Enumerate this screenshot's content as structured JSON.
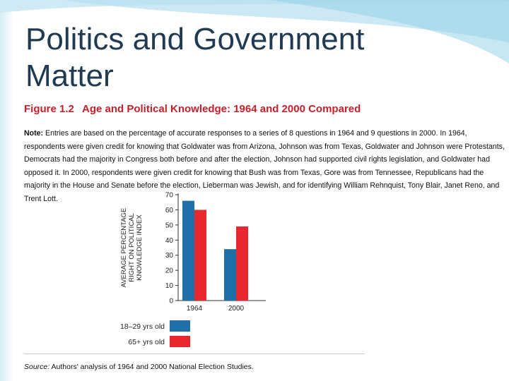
{
  "slide": {
    "title": "Politics and Government Matter"
  },
  "figure": {
    "label": "Figure 1.2",
    "title": "Age and Political Knowledge: 1964 and 2000 Compared",
    "note_prefix": "Note:",
    "note_text": "Entries are based on the percentage of accurate responses to a series of 8 questions in 1964 and 9 questions in 2000. In 1964, respondents were given credit for knowing that Goldwater was from Arizona, Johnson was from Texas, Goldwater and Johnson were Protestants, Democrats had the majority in Congress both before and after the election, Johnson had supported civil rights legislation, and Goldwater had opposed it. In 2000, respondents were given credit for knowing that Bush was from Texas, Gore was from Tennessee, Republicans had the majority in the House and Senate before the election, Lieberman was Jewish, and for identifying William Rehnquist, Tony Blair, Janet Reno, and Trent Lott.",
    "source_prefix": "Source:",
    "source_text": "Authors' analysis of 1964 and 2000 National Election Studies."
  },
  "colors": {
    "series_young": "#1f6fa8",
    "series_old": "#e8282e",
    "figure_accent": "#c8202a"
  },
  "chart_data": {
    "type": "bar",
    "categories": [
      "1964",
      "2000"
    ],
    "series": [
      {
        "name": "18–29 yrs old",
        "values": [
          66,
          34
        ]
      },
      {
        "name": "65+ yrs old",
        "values": [
          60,
          49
        ]
      }
    ],
    "ylabel_lines": [
      "AVERAGE PERCENTAGE",
      "RIGHT ON POLITICAL",
      "KNOWLEDGE INDEX"
    ],
    "ylim": [
      0,
      70
    ],
    "yticks": [
      0,
      10,
      20,
      30,
      40,
      50,
      60,
      70
    ],
    "grid": false,
    "legend_position": "bottom-left"
  }
}
